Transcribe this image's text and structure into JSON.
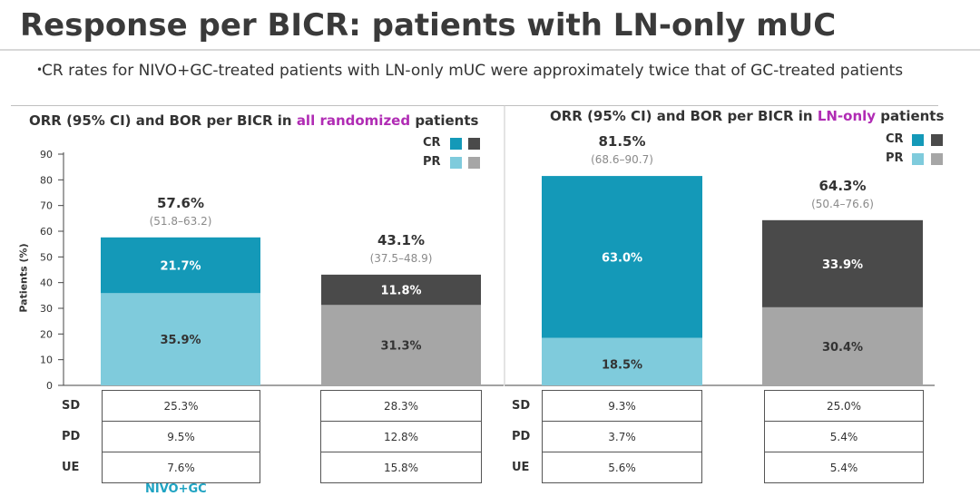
{
  "slide": {
    "title": "Response per BICR: patients with LN-only mUC",
    "bullet": "CR rates for NIVO+GC-treated patients with LN-only mUC were approximately twice that of GC-treated patients",
    "footer_fragment": "NIVO+GC"
  },
  "left_panel": {
    "title_prefix": "ORR (95% CI) and BOR per BICR in ",
    "title_highlight": "all randomized",
    "title_suffix": " patients"
  },
  "right_panel": {
    "title_prefix": "ORR (95% CI) and BOR per BICR in ",
    "title_highlight": "LN-only",
    "title_suffix": " patients"
  },
  "legend": {
    "cr": "CR",
    "pr": "PR"
  },
  "colors": {
    "nivo_cr": "#1499b8",
    "nivo_pr": "#7fcbdc",
    "gc_cr": "#4a4a4a",
    "gc_pr": "#a6a6a6",
    "highlight": "#b02cb4"
  },
  "table_row_labels": [
    "SD",
    "PD",
    "UE"
  ],
  "chart_data": {
    "type": "bar",
    "ylabel": "Patients (%)",
    "ylim": [
      0,
      90
    ],
    "yticks": [
      "0",
      "10",
      "20",
      "30",
      "40",
      "50",
      "60",
      "70",
      "80",
      "90"
    ],
    "bars": [
      {
        "panel": "left",
        "arm": "nivo",
        "cr": 21.7,
        "pr": 35.9,
        "cr_label": "21.7%",
        "pr_label": "35.9%",
        "orr": 57.6,
        "orr_label": "57.6%",
        "ci": "(51.8–63.2)",
        "table": [
          "25.3%",
          "9.5%",
          "7.6%"
        ]
      },
      {
        "panel": "left",
        "arm": "gc",
        "cr": 11.8,
        "pr": 31.3,
        "cr_label": "11.8%",
        "pr_label": "31.3%",
        "orr": 43.1,
        "orr_label": "43.1%",
        "ci": "(37.5–48.9)",
        "table": [
          "28.3%",
          "12.8%",
          "15.8%"
        ]
      },
      {
        "panel": "right",
        "arm": "nivo",
        "cr": 63.0,
        "pr": 18.5,
        "cr_label": "63.0%",
        "pr_label": "18.5%",
        "orr": 81.5,
        "orr_label": "81.5%",
        "ci": "(68.6–90.7)",
        "table": [
          "9.3%",
          "3.7%",
          "5.6%"
        ]
      },
      {
        "panel": "right",
        "arm": "gc",
        "cr": 33.9,
        "pr": 30.4,
        "cr_label": "33.9%",
        "pr_label": "30.4%",
        "orr": 64.3,
        "orr_label": "64.3%",
        "ci": "(50.4–76.6)",
        "table": [
          "25.0%",
          "5.4%",
          "5.4%"
        ]
      }
    ]
  }
}
